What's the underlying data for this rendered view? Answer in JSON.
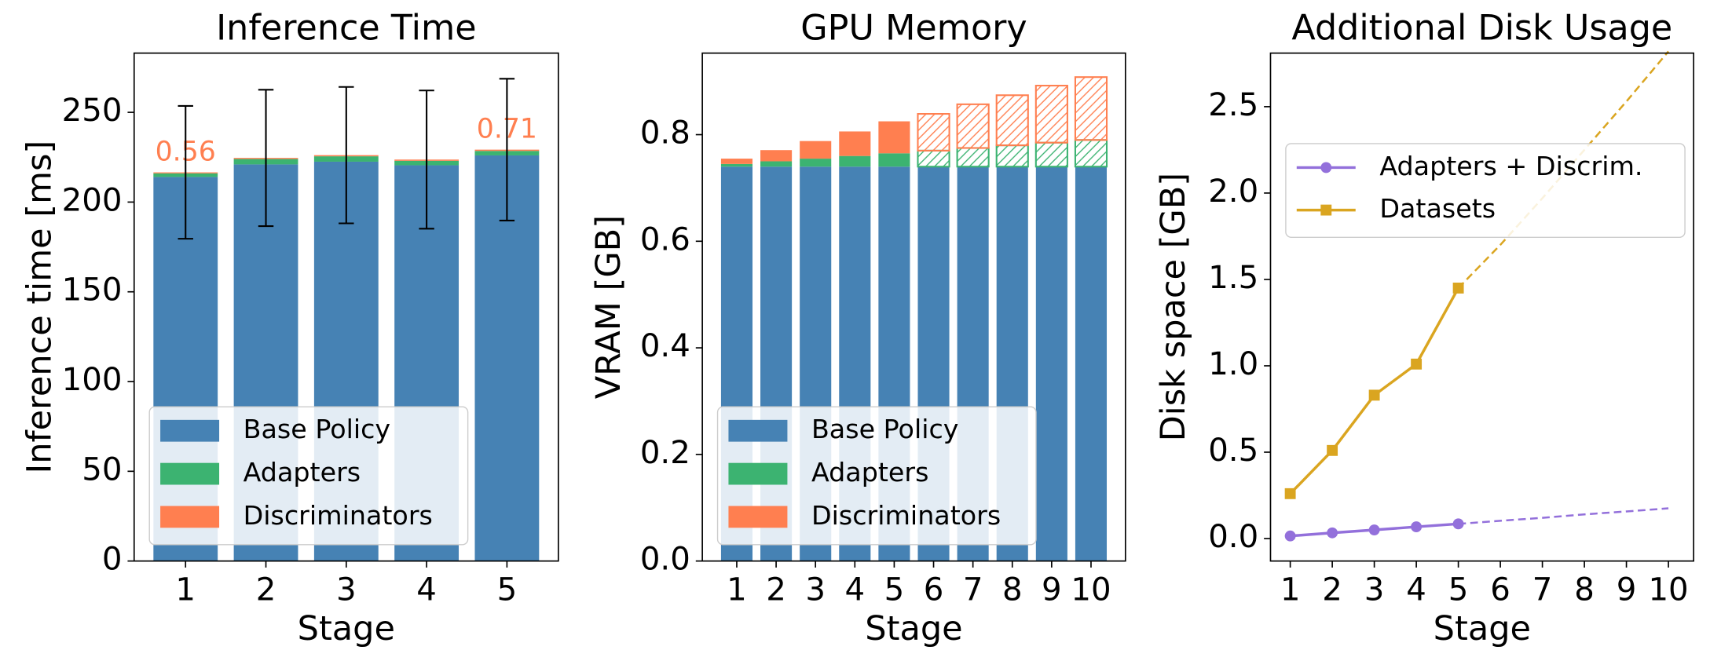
{
  "chart_data": [
    {
      "type": "bar",
      "title": "Inference Time",
      "xlabel": "Stage",
      "ylabel": "Inference time [ms]",
      "categories": [
        "1",
        "2",
        "3",
        "4",
        "5"
      ],
      "series": [
        {
          "name": "Base Policy",
          "color": "#4682b4",
          "values": [
            214,
            221,
            222.5,
            220.5,
            226
          ]
        },
        {
          "name": "Adapters",
          "color": "#3cb371",
          "values": [
            2,
            3,
            3,
            2.5,
            2.5
          ]
        },
        {
          "name": "Discriminators",
          "color": "#ff7f50",
          "values": [
            0.56,
            0.6,
            0.65,
            0.68,
            0.71
          ],
          "value_labels": [
            "0.56",
            null,
            null,
            null,
            "0.71"
          ]
        }
      ],
      "errors": [
        37,
        38,
        38,
        38.5,
        39.5
      ],
      "ylim": [
        0,
        283
      ],
      "yticks": [
        0,
        50,
        100,
        150,
        200,
        250
      ],
      "legend": "lower left"
    },
    {
      "type": "bar",
      "title": "GPU Memory",
      "xlabel": "Stage",
      "ylabel": "VRAM [GB]",
      "categories": [
        "1",
        "2",
        "3",
        "4",
        "5",
        "6",
        "7",
        "8",
        "9",
        "10"
      ],
      "projected": [
        false,
        false,
        false,
        false,
        false,
        true,
        true,
        true,
        true,
        true
      ],
      "series": [
        {
          "name": "Base Policy",
          "color": "#4682b4",
          "values": [
            0.74,
            0.74,
            0.74,
            0.74,
            0.74,
            0.74,
            0.74,
            0.74,
            0.74,
            0.74
          ]
        },
        {
          "name": "Adapters",
          "color": "#3cb371",
          "values": [
            0.005,
            0.01,
            0.015,
            0.02,
            0.025,
            0.03,
            0.035,
            0.04,
            0.045,
            0.05
          ]
        },
        {
          "name": "Discriminators",
          "color": "#ff7f50",
          "values": [
            0.01,
            0.021,
            0.033,
            0.046,
            0.06,
            0.069,
            0.082,
            0.094,
            0.107,
            0.118
          ]
        }
      ],
      "ylim": [
        0,
        0.953
      ],
      "yticks": [
        {
          "value": 0,
          "label": "0.0"
        },
        0.2,
        0.4,
        0.6,
        0.8
      ],
      "legend": "lower left"
    },
    {
      "type": "line",
      "title": "Additional Disk Usage",
      "xlabel": "Stage",
      "ylabel": "Disk space [GB]",
      "x": [
        1,
        2,
        3,
        4,
        5,
        6,
        7,
        8,
        9,
        10
      ],
      "projected": [
        false,
        false,
        false,
        false,
        false,
        true,
        true,
        true,
        true,
        true
      ],
      "series": [
        {
          "name": "Adapters + Discrim.",
          "color": "#9370db",
          "marker": "circle",
          "values": [
            0.015,
            0.033,
            0.05,
            0.068,
            0.085,
            0.103,
            0.12,
            0.14,
            0.157,
            0.175
          ]
        },
        {
          "name": "Datasets",
          "color": "#daa520",
          "marker": "square",
          "values": [
            0.26,
            0.51,
            0.83,
            1.01,
            1.45,
            1.7,
            1.97,
            2.25,
            2.53,
            2.82
          ]
        }
      ],
      "xlim": [
        0.53,
        10.6
      ],
      "xticks": [
        1,
        2,
        3,
        4,
        5,
        6,
        7,
        8,
        9,
        10
      ],
      "ylim": [
        -0.13,
        2.81
      ],
      "yticks": [
        {
          "value": 0,
          "label": "0.0"
        },
        0.5,
        {
          "value": 1,
          "label": "1.0"
        },
        1.5,
        {
          "value": 2,
          "label": "2.0"
        },
        2.5
      ],
      "legend": "upper left"
    }
  ]
}
